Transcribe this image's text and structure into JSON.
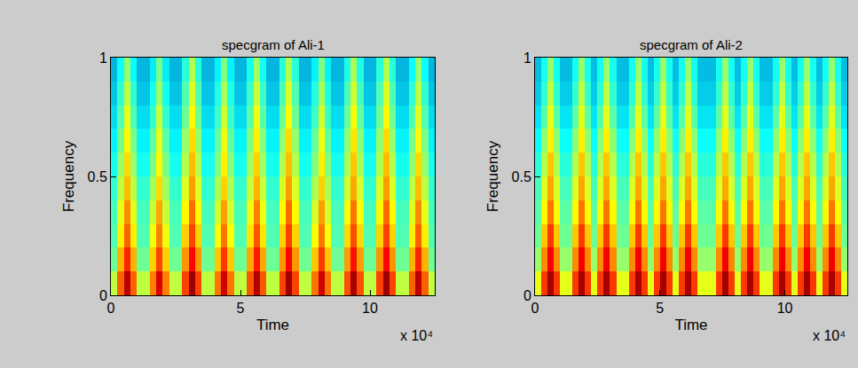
{
  "chart_data": [
    {
      "type": "heatmap",
      "title": "specgram of Ali-1",
      "xlabel": "Time",
      "ylabel": "Frequency",
      "annotations": [
        "x 10⁴"
      ],
      "color": "jet",
      "xlim": [
        0,
        12.5
      ],
      "xticks": [
        0,
        5,
        10
      ],
      "ylim": [
        0,
        1
      ],
      "yticks": [
        0,
        0.5,
        1
      ],
      "zlim": [
        0,
        10
      ],
      "x_edges": [
        0,
        0.25,
        0.5,
        0.75,
        1,
        1.25,
        1.5,
        1.75,
        2,
        2.25,
        2.5,
        2.75,
        3,
        3.25,
        3.5,
        3.75,
        4,
        4.25,
        4.5,
        4.75,
        5,
        5.25,
        5.5,
        5.75,
        6,
        6.25,
        6.5,
        6.75,
        7,
        7.25,
        7.5,
        7.75,
        8,
        8.25,
        8.5,
        8.75,
        9,
        9.25,
        9.5,
        9.75,
        10,
        10.25,
        10.5,
        10.75,
        11,
        11.25,
        11.5,
        11.75,
        12,
        12.25,
        12.5
      ],
      "y_edges": [
        0,
        0.1,
        0.2,
        0.3,
        0.4,
        0.5,
        0.6,
        0.7,
        0.8,
        0.9,
        1
      ],
      "cells": [
        [
          5.6,
          7.8,
          9.4,
          7.8,
          5.6,
          5.6,
          7.5,
          9.1,
          7.5,
          5.6,
          5.6,
          8.1,
          9.7,
          8.1,
          5.6,
          5.6,
          7.6,
          9.2,
          7.6,
          5.6,
          5.6,
          7.9,
          9.5,
          7.9,
          5.6,
          5.6,
          8.1,
          9.7,
          8.1,
          5.6,
          5.6,
          7.6,
          9.2,
          7.6,
          5.6,
          5.6,
          8.0,
          9.6,
          8.0,
          5.6,
          5.6,
          8.1,
          9.7,
          8.1,
          5.6,
          5.6,
          7.8,
          9.4,
          7.8,
          5.6
        ],
        [
          4.8,
          7.0,
          8.4,
          7.0,
          4.8,
          4.8,
          6.7,
          8.1,
          6.7,
          4.8,
          4.8,
          7.3,
          8.7,
          7.3,
          4.8,
          4.8,
          6.8,
          8.2,
          6.8,
          4.8,
          4.8,
          7.1,
          8.5,
          7.1,
          4.8,
          4.8,
          7.3,
          8.7,
          7.3,
          4.8,
          4.8,
          6.8,
          8.2,
          6.8,
          4.8,
          4.8,
          7.2,
          8.6,
          7.2,
          4.8,
          4.8,
          7.3,
          8.7,
          7.3,
          4.8,
          4.8,
          7.0,
          8.4,
          7.0,
          4.8
        ],
        [
          4.5,
          6.4,
          7.8,
          6.4,
          4.5,
          4.5,
          6.1,
          7.5,
          6.1,
          4.5,
          4.5,
          6.7,
          8.1,
          6.7,
          4.5,
          4.5,
          6.2,
          7.6,
          6.2,
          4.5,
          4.5,
          6.5,
          7.9,
          6.5,
          4.5,
          4.5,
          6.7,
          8.1,
          6.7,
          4.5,
          4.5,
          6.2,
          7.6,
          6.2,
          4.5,
          4.5,
          6.6,
          8.0,
          6.6,
          4.5,
          4.5,
          6.7,
          8.1,
          6.7,
          4.5,
          4.5,
          6.4,
          7.8,
          6.4,
          4.5
        ],
        [
          4.4,
          6.0,
          7.4,
          6.0,
          4.4,
          4.4,
          5.7,
          7.1,
          5.7,
          4.4,
          4.4,
          6.3,
          7.7,
          6.3,
          4.4,
          4.4,
          5.8,
          7.2,
          5.8,
          4.4,
          4.4,
          6.1,
          7.5,
          6.1,
          4.4,
          4.4,
          6.3,
          7.7,
          6.3,
          4.4,
          4.4,
          5.8,
          7.2,
          5.8,
          4.4,
          4.4,
          6.2,
          7.6,
          6.2,
          4.4,
          4.4,
          6.3,
          7.7,
          6.3,
          4.4,
          4.4,
          6.0,
          7.4,
          6.0,
          4.4
        ],
        [
          4.2,
          5.6,
          6.9,
          5.6,
          4.2,
          4.2,
          5.3,
          6.6,
          5.3,
          4.2,
          4.2,
          5.9,
          7.2,
          5.9,
          4.2,
          4.2,
          5.4,
          6.7,
          5.4,
          4.2,
          4.2,
          5.7,
          7.0,
          5.7,
          4.2,
          4.2,
          5.9,
          7.2,
          5.9,
          4.2,
          4.2,
          5.4,
          6.7,
          5.4,
          4.2,
          4.2,
          5.8,
          7.1,
          5.8,
          4.2,
          4.2,
          5.9,
          7.2,
          5.9,
          4.2,
          4.2,
          5.6,
          6.9,
          5.6,
          4.2
        ],
        [
          3.9,
          5.2,
          6.6,
          5.2,
          3.9,
          3.9,
          4.9,
          6.3,
          4.9,
          3.9,
          3.9,
          5.5,
          6.9,
          5.5,
          3.9,
          3.9,
          5.0,
          6.4,
          5.0,
          3.9,
          3.9,
          5.3,
          6.7,
          5.3,
          3.9,
          3.9,
          5.5,
          6.9,
          5.5,
          3.9,
          3.9,
          5.0,
          6.4,
          5.0,
          3.9,
          3.9,
          5.4,
          6.8,
          5.4,
          3.9,
          3.9,
          5.5,
          6.9,
          5.5,
          3.9,
          3.9,
          5.2,
          6.6,
          5.2,
          3.9
        ],
        [
          3.6,
          4.9,
          6.3,
          4.9,
          3.6,
          3.6,
          4.6,
          6.0,
          4.6,
          3.6,
          3.6,
          5.2,
          6.6,
          5.2,
          3.6,
          3.6,
          4.7,
          6.1,
          4.7,
          3.6,
          3.6,
          5.0,
          6.4,
          5.0,
          3.6,
          3.6,
          5.2,
          6.6,
          5.2,
          3.6,
          3.6,
          4.7,
          6.1,
          4.7,
          3.6,
          3.6,
          5.1,
          6.5,
          5.1,
          3.6,
          3.6,
          5.2,
          6.6,
          5.2,
          3.6,
          3.6,
          4.9,
          6.3,
          4.9,
          3.6
        ],
        [
          3.3,
          4.5,
          6.0,
          4.5,
          3.3,
          3.3,
          4.2,
          5.7,
          4.2,
          3.3,
          3.3,
          4.8,
          6.3,
          4.8,
          3.3,
          3.3,
          4.3,
          5.8,
          4.3,
          3.3,
          3.3,
          4.6,
          6.1,
          4.6,
          3.3,
          3.3,
          4.8,
          6.3,
          4.8,
          3.3,
          3.3,
          4.3,
          5.8,
          4.3,
          3.3,
          3.3,
          4.7,
          6.2,
          4.7,
          3.3,
          3.3,
          4.8,
          6.3,
          4.8,
          3.3,
          3.3,
          4.5,
          6.0,
          4.5,
          3.3
        ],
        [
          3.0,
          4.2,
          5.6,
          4.2,
          3.0,
          3.0,
          3.9,
          5.3,
          3.9,
          3.0,
          3.0,
          4.5,
          5.9,
          4.5,
          3.0,
          3.0,
          4.0,
          5.4,
          4.0,
          3.0,
          3.0,
          4.3,
          5.7,
          4.3,
          3.0,
          3.0,
          4.5,
          5.9,
          4.5,
          3.0,
          3.0,
          4.0,
          5.4,
          4.0,
          3.0,
          3.0,
          4.4,
          5.8,
          4.4,
          3.0,
          3.0,
          4.5,
          5.9,
          4.5,
          3.0,
          3.0,
          4.2,
          5.6,
          4.2,
          3.0
        ],
        [
          2.8,
          3.8,
          5.2,
          3.8,
          2.8,
          2.8,
          3.5,
          4.9,
          3.5,
          2.8,
          2.8,
          4.1,
          5.5,
          4.1,
          2.8,
          2.8,
          3.6,
          5.0,
          3.6,
          2.8,
          2.8,
          3.9,
          5.3,
          3.9,
          2.8,
          2.8,
          4.1,
          5.5,
          4.1,
          2.8,
          2.8,
          3.6,
          5.0,
          3.6,
          2.8,
          2.8,
          4.0,
          5.4,
          4.0,
          2.8,
          2.8,
          4.1,
          5.5,
          4.1,
          2.8,
          2.8,
          3.8,
          5.2,
          3.8,
          2.8
        ]
      ]
    },
    {
      "type": "heatmap",
      "title": "specgram of Ali-2",
      "xlabel": "Time",
      "ylabel": "Frequency",
      "annotations": [
        "x 10⁴"
      ],
      "color": "jet",
      "xlim": [
        0,
        12.5
      ],
      "xticks": [
        0,
        5,
        10
      ],
      "ylim": [
        0,
        1
      ],
      "yticks": [
        0,
        0.5,
        1
      ],
      "zlim": [
        0,
        10
      ],
      "x_edges": [
        0,
        0.25,
        0.5,
        0.75,
        1,
        1.25,
        1.5,
        1.75,
        2,
        2.25,
        2.5,
        2.75,
        3,
        3.25,
        3.5,
        3.75,
        4,
        4.25,
        4.5,
        4.75,
        5,
        5.25,
        5.5,
        5.75,
        6,
        6.25,
        6.5,
        6.75,
        7,
        7.25,
        7.5,
        7.75,
        8,
        8.25,
        8.5,
        8.75,
        9,
        9.25,
        9.5,
        9.75,
        10,
        10.25,
        10.5,
        10.75,
        11,
        11.25,
        11.5,
        11.75,
        12,
        12.25,
        12.5
      ],
      "y_edges": [
        0,
        0.1,
        0.2,
        0.3,
        0.4,
        0.5,
        0.6,
        0.7,
        0.8,
        0.9,
        1
      ],
      "cells": [
        [
          6.0,
          8.2,
          9.6,
          8.2,
          6.0,
          6.0,
          8.2,
          9.6,
          8.2,
          6.0,
          8.2,
          9.6,
          8.2,
          6.0,
          6.0,
          8.2,
          9.6,
          8.2,
          6.0,
          8.2,
          9.6,
          8.2,
          6.0,
          8.2,
          9.6,
          8.2,
          6.0,
          6.0,
          6.0,
          8.2,
          9.6,
          8.2,
          6.0,
          8.2,
          9.6,
          8.2,
          6.0,
          6.0,
          8.2,
          9.6,
          8.2,
          6.0,
          8.2,
          9.6,
          8.2,
          6.0,
          8.2,
          9.6,
          8.2,
          6.0
        ],
        [
          5.2,
          7.4,
          8.8,
          7.4,
          5.2,
          5.2,
          7.4,
          8.8,
          7.4,
          5.2,
          7.4,
          8.8,
          7.4,
          5.2,
          5.2,
          7.4,
          8.8,
          7.4,
          5.2,
          7.4,
          8.8,
          7.4,
          5.2,
          7.4,
          8.8,
          7.4,
          5.2,
          5.2,
          5.2,
          7.4,
          8.8,
          7.4,
          5.2,
          7.4,
          8.8,
          7.4,
          5.2,
          5.2,
          7.4,
          8.8,
          7.4,
          5.2,
          7.4,
          8.8,
          7.4,
          5.2,
          7.4,
          8.8,
          7.4,
          5.2
        ],
        [
          4.8,
          6.8,
          8.2,
          6.8,
          4.8,
          4.8,
          6.8,
          8.2,
          6.8,
          4.8,
          6.8,
          8.2,
          6.8,
          4.8,
          4.8,
          6.8,
          8.2,
          6.8,
          4.8,
          6.8,
          8.2,
          6.8,
          4.8,
          6.8,
          8.2,
          6.8,
          4.8,
          4.8,
          4.8,
          6.8,
          8.2,
          6.8,
          4.8,
          6.8,
          8.2,
          6.8,
          4.8,
          4.8,
          6.8,
          8.2,
          6.8,
          4.8,
          6.8,
          8.2,
          6.8,
          4.8,
          6.8,
          8.2,
          6.8,
          4.8
        ],
        [
          4.6,
          6.3,
          7.6,
          6.3,
          4.6,
          4.6,
          6.3,
          7.6,
          6.3,
          4.6,
          6.3,
          7.6,
          6.3,
          4.6,
          4.6,
          6.3,
          7.6,
          6.3,
          4.6,
          6.3,
          7.6,
          6.3,
          4.6,
          6.3,
          7.6,
          6.3,
          4.6,
          4.6,
          4.6,
          6.3,
          7.6,
          6.3,
          4.6,
          6.3,
          7.6,
          6.3,
          4.6,
          4.6,
          6.3,
          7.6,
          6.3,
          4.6,
          6.3,
          7.6,
          6.3,
          4.6,
          6.3,
          7.6,
          6.3,
          4.6
        ],
        [
          4.4,
          5.9,
          7.1,
          5.9,
          4.4,
          4.4,
          5.9,
          7.1,
          5.9,
          4.4,
          5.9,
          7.1,
          5.9,
          4.4,
          4.4,
          5.9,
          7.1,
          5.9,
          4.4,
          5.9,
          7.1,
          5.9,
          4.4,
          5.9,
          7.1,
          5.9,
          4.4,
          4.4,
          4.4,
          5.9,
          7.1,
          5.9,
          4.4,
          5.9,
          7.1,
          5.9,
          4.4,
          4.4,
          5.9,
          7.1,
          5.9,
          4.4,
          5.9,
          7.1,
          5.9,
          4.4,
          5.9,
          7.1,
          5.9,
          4.4
        ],
        [
          4.1,
          5.5,
          6.8,
          5.5,
          4.1,
          4.1,
          5.5,
          6.8,
          5.5,
          4.1,
          5.5,
          6.8,
          5.5,
          4.1,
          4.1,
          5.5,
          6.8,
          5.5,
          4.1,
          5.5,
          6.8,
          5.5,
          4.1,
          5.5,
          6.8,
          5.5,
          4.1,
          4.1,
          4.1,
          5.5,
          6.8,
          5.5,
          4.1,
          5.5,
          6.8,
          5.5,
          4.1,
          4.1,
          5.5,
          6.8,
          5.5,
          4.1,
          5.5,
          6.8,
          5.5,
          4.1,
          5.5,
          6.8,
          5.5,
          4.1
        ],
        [
          3.8,
          5.1,
          6.4,
          5.1,
          3.8,
          3.8,
          5.1,
          6.4,
          5.1,
          3.8,
          5.1,
          6.4,
          5.1,
          3.8,
          3.8,
          5.1,
          6.4,
          5.1,
          3.8,
          5.1,
          6.4,
          5.1,
          3.8,
          5.1,
          6.4,
          5.1,
          3.8,
          3.8,
          3.8,
          5.1,
          6.4,
          5.1,
          3.8,
          5.1,
          6.4,
          5.1,
          3.8,
          3.8,
          5.1,
          6.4,
          5.1,
          3.8,
          5.1,
          6.4,
          5.1,
          3.8,
          5.1,
          6.4,
          5.1,
          3.8
        ],
        [
          3.4,
          4.6,
          6.0,
          4.6,
          3.4,
          3.4,
          4.6,
          6.0,
          4.6,
          3.4,
          4.6,
          6.0,
          4.6,
          3.4,
          3.4,
          4.6,
          6.0,
          4.6,
          3.4,
          4.6,
          6.0,
          4.6,
          3.4,
          4.6,
          6.0,
          4.6,
          3.4,
          3.4,
          3.4,
          4.6,
          6.0,
          4.6,
          3.4,
          4.6,
          6.0,
          4.6,
          3.4,
          3.4,
          4.6,
          6.0,
          4.6,
          3.4,
          4.6,
          6.0,
          4.6,
          3.4,
          4.6,
          6.0,
          4.6,
          3.4
        ],
        [
          3.1,
          4.2,
          5.6,
          4.2,
          3.1,
          3.1,
          4.2,
          5.6,
          4.2,
          3.1,
          4.2,
          5.6,
          4.2,
          3.1,
          3.1,
          4.2,
          5.6,
          4.2,
          3.1,
          4.2,
          5.6,
          4.2,
          3.1,
          4.2,
          5.6,
          4.2,
          3.1,
          3.1,
          3.1,
          4.2,
          5.6,
          4.2,
          3.1,
          4.2,
          5.6,
          4.2,
          3.1,
          3.1,
          4.2,
          5.6,
          4.2,
          3.1,
          4.2,
          5.6,
          4.2,
          3.1,
          4.2,
          5.6,
          4.2,
          3.1
        ],
        [
          2.9,
          3.9,
          5.2,
          3.9,
          2.9,
          2.9,
          3.9,
          5.2,
          3.9,
          2.9,
          3.9,
          5.2,
          3.9,
          2.9,
          2.9,
          3.9,
          5.2,
          3.9,
          2.9,
          3.9,
          5.2,
          3.9,
          2.9,
          3.9,
          5.2,
          3.9,
          2.9,
          2.9,
          2.9,
          3.9,
          5.2,
          3.9,
          2.9,
          3.9,
          5.2,
          3.9,
          2.9,
          2.9,
          3.9,
          5.2,
          3.9,
          2.9,
          3.9,
          5.2,
          3.9,
          2.9,
          3.9,
          5.2,
          3.9,
          2.9
        ]
      ]
    }
  ]
}
